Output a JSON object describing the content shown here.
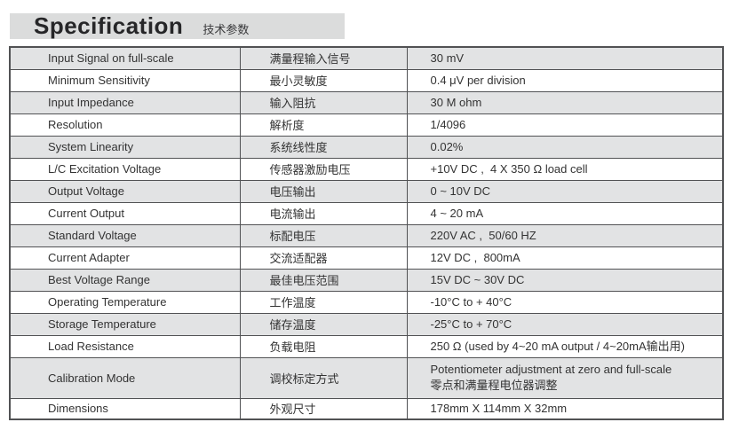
{
  "header": {
    "title": "Specification",
    "subtitle": "技术参数"
  },
  "table": {
    "rows": [
      {
        "en": "Input Signal on full-scale",
        "zh": "满量程输入信号",
        "value": "30 mV",
        "tall": false
      },
      {
        "en": "Minimum Sensitivity",
        "zh": "最小灵敏度",
        "value": "0.4 μV per division",
        "tall": false
      },
      {
        "en": "Input Impedance",
        "zh": "输入阻抗",
        "value": "30 M ohm",
        "tall": false
      },
      {
        "en": "Resolution",
        "zh": "解析度",
        "value": "1/4096",
        "tall": false
      },
      {
        "en": "System Linearity",
        "zh": "系统线性度",
        "value": "0.02%",
        "tall": false
      },
      {
        "en": "L/C Excitation Voltage",
        "zh": "传感器激励电压",
        "value": "+10V DC ,  4 X 350 Ω load cell",
        "tall": false
      },
      {
        "en": "Output Voltage",
        "zh": "电压输出",
        "value": "0 ~ 10V DC",
        "tall": false
      },
      {
        "en": "Current Output",
        "zh": "电流输出",
        "value": "4 ~ 20 mA",
        "tall": false
      },
      {
        "en": "Standard Voltage",
        "zh": "标配电压",
        "value": "220V AC ,  50/60 HZ",
        "tall": false
      },
      {
        "en": "Current Adapter",
        "zh": "交流适配器",
        "value": "12V DC ,  800mA",
        "tall": false
      },
      {
        "en": "Best Voltage Range",
        "zh": "最佳电压范围",
        "value": "15V DC ~ 30V DC",
        "tall": false
      },
      {
        "en": "Operating Temperature",
        "zh": "工作温度",
        "value": "-10°C to + 40°C",
        "tall": false
      },
      {
        "en": "Storage Temperature",
        "zh": "储存温度",
        "value": "-25°C to + 70°C",
        "tall": false
      },
      {
        "en": "Load Resistance",
        "zh": "负载电阻",
        "value": "250 Ω (used by 4~20 mA output / 4~20mA输出用)",
        "tall": false
      },
      {
        "en": "Calibration Mode",
        "zh": "调校标定方式",
        "value": "Potentiometer adjustment at zero and full-scale\n零点和满量程电位器调整",
        "tall": true
      },
      {
        "en": "Dimensions",
        "zh": "外观尺寸",
        "value": "178mm X 114mm X 32mm",
        "tall": false
      }
    ],
    "colors": {
      "row_shade": "#e2e3e4",
      "header_bar": "#dbdcdc",
      "border": "#515254",
      "text": "#333333"
    }
  }
}
